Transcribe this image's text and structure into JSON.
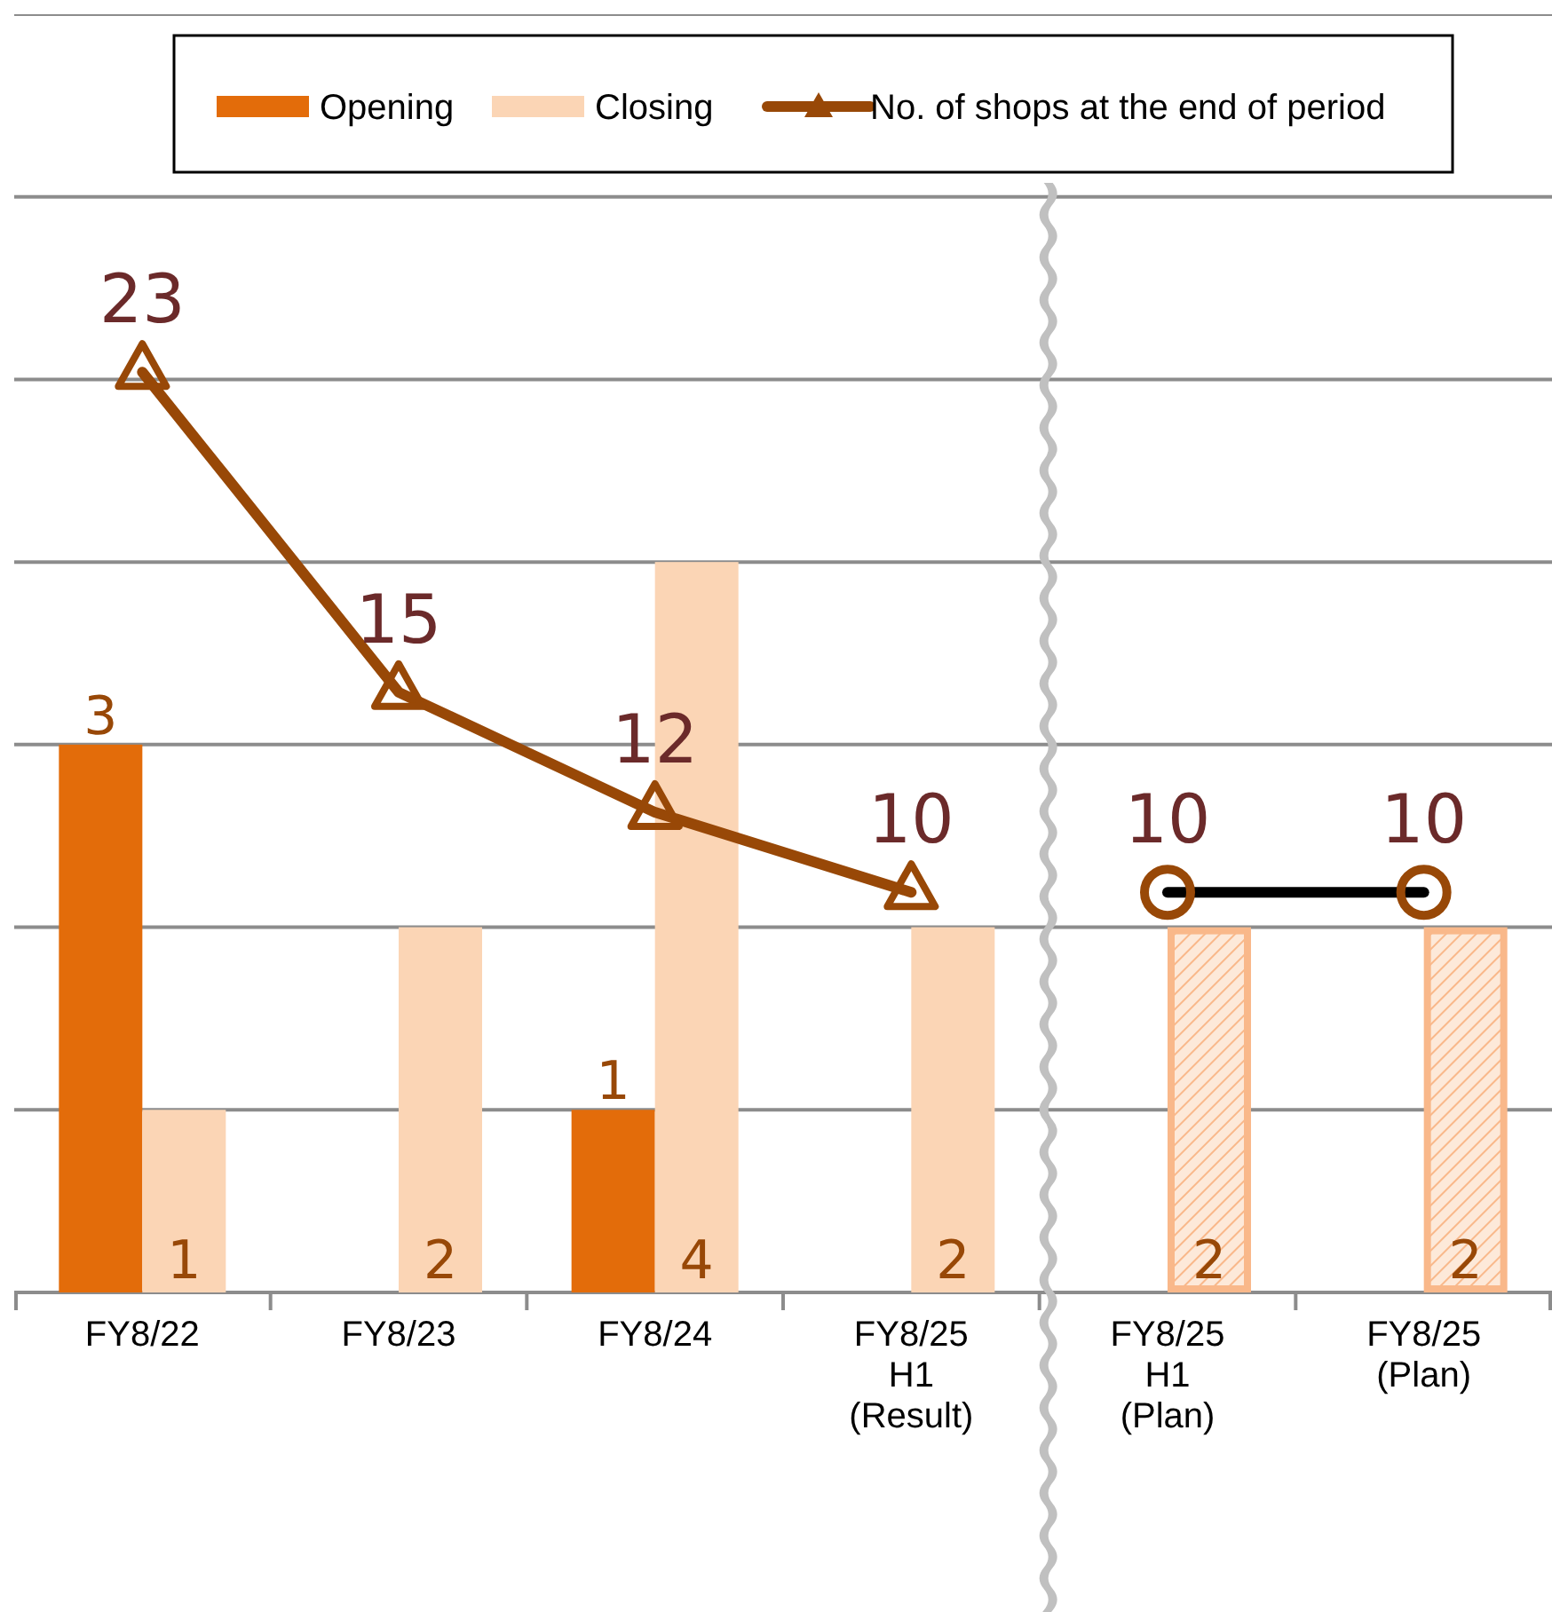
{
  "chart_data": {
    "type": "bar",
    "categories": [
      "FY8/22",
      "FY8/23",
      "FY8/24",
      "FY8/25\nH1\n(Result)",
      "FY8/25\nH1\n(Plan)",
      "FY8/25\n(Plan)"
    ],
    "series": [
      {
        "name": "Opening",
        "color": "#e36c0a",
        "values": [
          3,
          null,
          1,
          null,
          null,
          null
        ]
      },
      {
        "name": "Closing",
        "color": "#fbd5b5",
        "values": [
          1,
          2,
          4,
          2,
          null,
          null
        ]
      },
      {
        "color": "#f9b88a",
        "values": [
          null,
          null,
          null,
          null,
          2,
          2
        ]
      },
      {
        "name": "No. of shops at the end of period",
        "type": "line",
        "axis": "y2",
        "color": "#984807",
        "marker": "triangle",
        "values": [
          23,
          15,
          12,
          10,
          null,
          null
        ]
      },
      {
        "type": "line",
        "axis": "y2",
        "color": "#000000",
        "marker": "circle",
        "values": [
          null,
          null,
          null,
          null,
          10,
          10
        ]
      }
    ],
    "ylim": [
      0,
      7
    ],
    "yticks": [
      {
        "value": 0,
        "label": null
      },
      {
        "value": 1,
        "label": null
      },
      {
        "value": 2,
        "label": null
      },
      {
        "value": 3,
        "label": null
      },
      {
        "value": 4,
        "label": null
      },
      {
        "value": 5,
        "label": null
      },
      {
        "value": 6,
        "label": null
      },
      {
        "value": 7,
        "label": null
      }
    ],
    "tick_labels": "x",
    "grid": "y",
    "legend": "top",
    "data_labels": true
  }
}
